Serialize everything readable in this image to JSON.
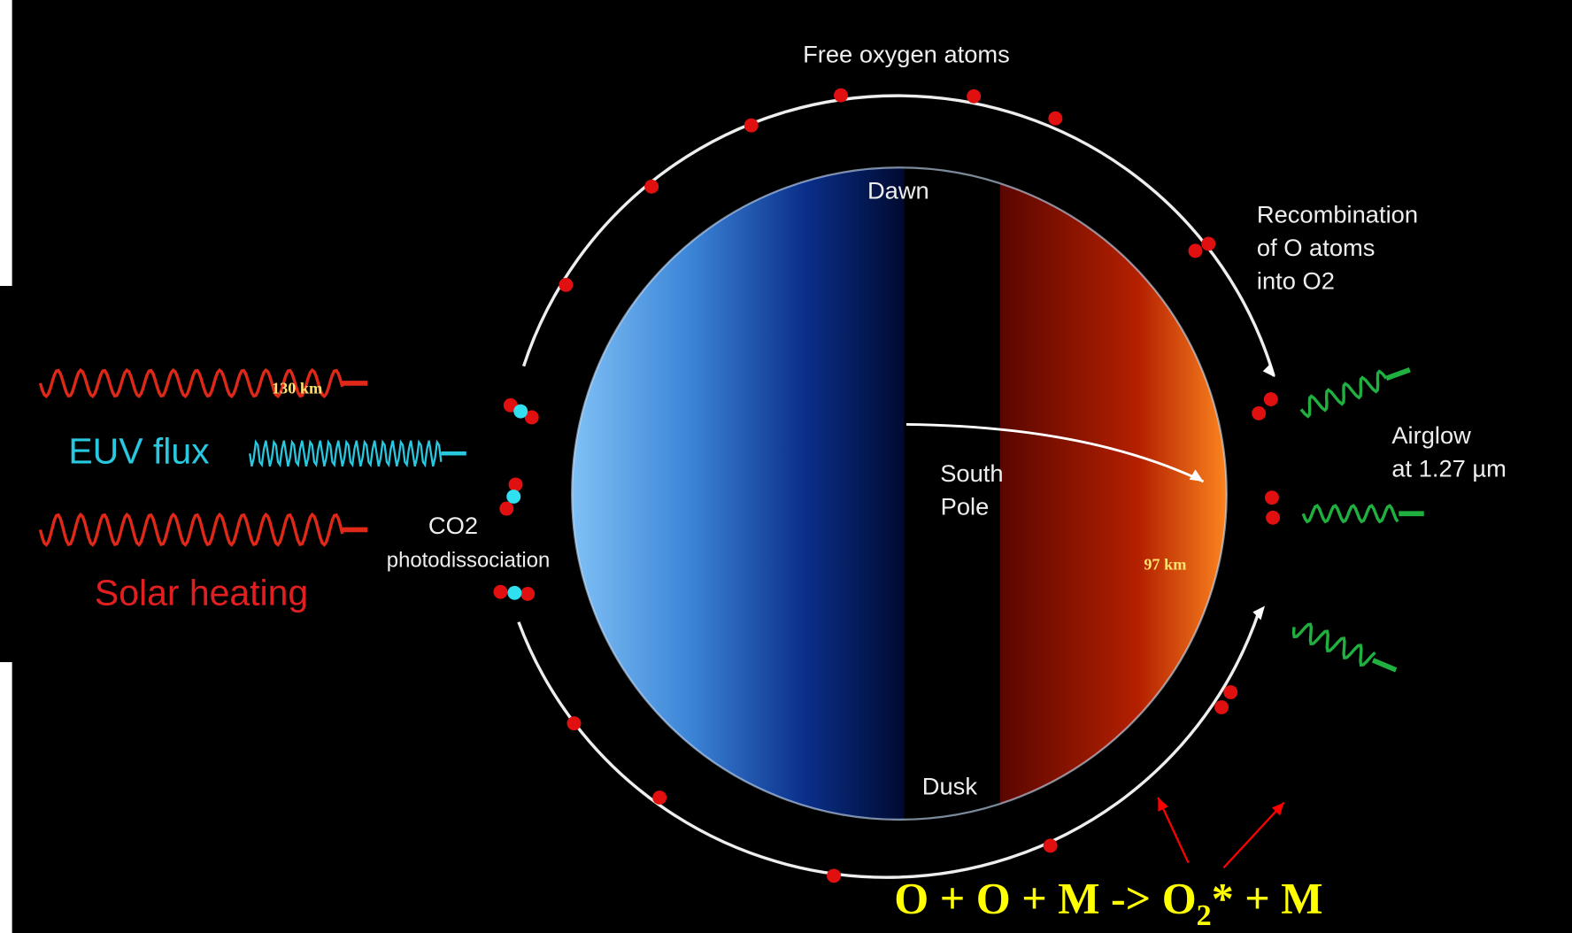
{
  "labels": {
    "free_oxygen": "Free oxygen atoms",
    "dawn": "Dawn",
    "dusk": "Dusk",
    "south_pole": [
      "South",
      "Pole"
    ],
    "recombination": [
      "Recombination",
      "of O atoms",
      "into O2"
    ],
    "airglow": [
      "Airglow",
      "at 1.27 µm"
    ],
    "co2": [
      "CO2",
      "photodissociation"
    ],
    "euv_flux": "EUV flux",
    "solar_heating": "Solar heating",
    "km_130": "130 km",
    "km_97": "97 km"
  },
  "equation": {
    "main": "O + O + M -> O",
    "subscript": "2",
    "tail": "* + M"
  }
}
